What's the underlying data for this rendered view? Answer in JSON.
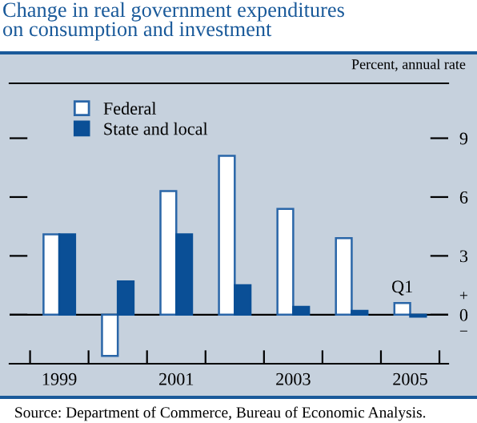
{
  "chart_data": {
    "type": "bar",
    "title": "Change in real government expenditures\non consumption and investment",
    "ylabel": "Percent, annual rate",
    "categories": [
      "1999",
      null,
      "2001",
      null,
      "2003",
      null,
      "2005"
    ],
    "series": [
      {
        "name": "Federal",
        "color": "#ffffff",
        "values": [
          4.1,
          -2.1,
          6.3,
          8.1,
          5.4,
          3.9,
          0.6
        ]
      },
      {
        "name": "State and local",
        "color": "#0a4f96",
        "values": [
          4.1,
          1.7,
          4.1,
          1.5,
          0.4,
          0.2,
          -0.1
        ]
      }
    ],
    "ylim": [
      -2.5,
      11.8
    ],
    "yticks": [
      0,
      3,
      6,
      9
    ],
    "ref_lines": [
      {
        "axis": "y",
        "value": 0,
        "color": "#000000"
      }
    ],
    "annotations": [
      {
        "text": "Q1",
        "x": "2005",
        "y": 0.6
      },
      "+",
      "−",
      "Source: Department of Commerce, Bureau of Economic Analysis."
    ],
    "legend": "top left",
    "grid": false
  }
}
